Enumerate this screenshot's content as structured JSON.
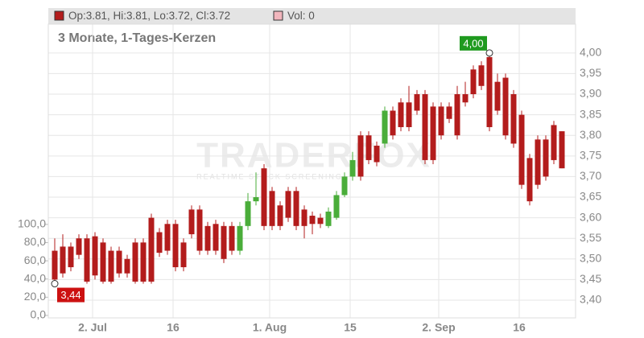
{
  "chart_data": {
    "type": "candlestick",
    "ohlc_label": "Op:3.81, Hi:3.81, Lo:3.72, Cl:3.72",
    "volume_label": "Vol: 0",
    "subtitle": "3 Monate, 1-Tages-Kerzen",
    "watermark": "TRADERFOX",
    "watermark_tagline": "REALTIME STOCK SCREENING",
    "up_color": "#4aad3a",
    "down_color": "#b31c1c",
    "categories": [
      null,
      null,
      null,
      null,
      null,
      "2. Jul",
      null,
      null,
      null,
      null,
      null,
      null,
      null,
      null,
      null,
      "16",
      null,
      null,
      null,
      null,
      null,
      null,
      null,
      null,
      null,
      null,
      null,
      "1. Aug",
      null,
      null,
      null,
      null,
      null,
      null,
      null,
      null,
      null,
      "15",
      null,
      null,
      null,
      null,
      null,
      null,
      null,
      null,
      null,
      null,
      "2. Sep",
      null,
      null,
      null,
      null,
      null,
      null,
      null,
      null,
      null,
      "16",
      null,
      null,
      null,
      null,
      null
    ],
    "open": [
      3.52,
      3.53,
      3.53,
      3.55,
      3.55,
      3.555,
      3.54,
      3.52,
      3.52,
      3.5,
      3.54,
      3.54,
      3.6,
      3.565,
      3.585,
      3.585,
      3.54,
      3.62,
      3.62,
      3.58,
      3.585,
      3.58,
      3.58,
      3.52,
      3.58,
      3.64,
      3.72,
      3.665,
      3.63,
      3.665,
      3.665,
      3.62,
      3.605,
      3.6,
      3.58,
      3.6,
      3.655,
      3.7,
      3.8,
      3.8,
      3.775,
      3.78,
      3.86,
      3.88,
      3.88,
      3.9,
      3.9,
      3.87,
      3.87,
      3.87,
      3.9,
      3.9,
      3.96,
      3.97,
      3.99,
      3.93,
      3.94,
      3.9,
      3.85,
      3.745,
      3.79,
      3.79,
      3.825,
      3.81
    ],
    "high": [
      3.55,
      3.56,
      3.54,
      3.56,
      3.56,
      3.565,
      3.55,
      3.53,
      3.53,
      3.51,
      3.55,
      3.55,
      3.61,
      3.575,
      3.595,
      3.595,
      3.55,
      3.63,
      3.63,
      3.59,
      3.595,
      3.59,
      3.59,
      3.59,
      3.66,
      3.71,
      3.73,
      3.675,
      3.64,
      3.675,
      3.675,
      3.63,
      3.615,
      3.61,
      3.625,
      3.665,
      3.71,
      3.76,
      3.81,
      3.81,
      3.785,
      3.87,
      3.87,
      3.89,
      3.92,
      3.91,
      3.91,
      3.88,
      3.88,
      3.88,
      3.92,
      3.93,
      3.97,
      3.98,
      4.0,
      3.95,
      3.95,
      3.91,
      3.86,
      3.755,
      3.8,
      3.8,
      3.835,
      3.81
    ],
    "low": [
      3.44,
      3.455,
      3.47,
      3.5,
      3.44,
      3.45,
      3.44,
      3.44,
      3.455,
      3.455,
      3.44,
      3.44,
      3.44,
      3.505,
      3.51,
      3.47,
      3.47,
      3.55,
      3.51,
      3.51,
      3.51,
      3.49,
      3.51,
      3.51,
      3.57,
      3.63,
      3.57,
      3.57,
      3.57,
      3.59,
      3.57,
      3.55,
      3.56,
      3.575,
      3.575,
      3.595,
      3.65,
      3.69,
      3.69,
      3.73,
      3.725,
      3.77,
      3.79,
      3.81,
      3.81,
      3.85,
      3.73,
      3.73,
      3.79,
      3.83,
      3.79,
      3.87,
      3.89,
      3.91,
      3.81,
      3.85,
      3.79,
      3.77,
      3.67,
      3.63,
      3.67,
      3.69,
      3.73,
      3.72
    ],
    "close": [
      3.45,
      3.465,
      3.48,
      3.51,
      3.445,
      3.46,
      3.445,
      3.445,
      3.465,
      3.465,
      3.445,
      3.445,
      3.445,
      3.515,
      3.52,
      3.48,
      3.48,
      3.56,
      3.52,
      3.52,
      3.52,
      3.5,
      3.52,
      3.58,
      3.64,
      3.65,
      3.58,
      3.58,
      3.58,
      3.6,
      3.58,
      3.58,
      3.585,
      3.585,
      3.615,
      3.655,
      3.7,
      3.74,
      3.7,
      3.74,
      3.735,
      3.86,
      3.8,
      3.82,
      3.82,
      3.86,
      3.74,
      3.74,
      3.8,
      3.84,
      3.8,
      3.88,
      3.9,
      3.92,
      3.82,
      3.86,
      3.8,
      3.78,
      3.68,
      3.64,
      3.68,
      3.7,
      3.74,
      3.72
    ],
    "ylim": [
      3.357,
      4.07
    ],
    "yticks": [
      {
        "value": 3.4,
        "label": "3,40"
      },
      {
        "value": 3.45,
        "label": "3,45"
      },
      {
        "value": 3.5,
        "label": "3,50"
      },
      {
        "value": 3.55,
        "label": "3,55"
      },
      {
        "value": 3.6,
        "label": "3,60"
      },
      {
        "value": 3.65,
        "label": "3,65"
      },
      {
        "value": 3.7,
        "label": "3,70"
      },
      {
        "value": 3.75,
        "label": "3,75"
      },
      {
        "value": 3.8,
        "label": "3,80"
      },
      {
        "value": 3.85,
        "label": "3,85"
      },
      {
        "value": 3.9,
        "label": "3,90"
      },
      {
        "value": 3.95,
        "label": "3,95"
      },
      {
        "value": 4.0,
        "label": "4,00"
      }
    ],
    "y2lim": [
      -2.7,
      320
    ],
    "y2ticks": [
      {
        "value": 0,
        "label": "0,0"
      },
      {
        "value": 20,
        "label": "20,0"
      },
      {
        "value": 40,
        "label": "40,0"
      },
      {
        "value": 60,
        "label": "60,0"
      },
      {
        "value": 80,
        "label": "80,0"
      },
      {
        "value": 100,
        "label": "100,0"
      }
    ],
    "grid": true,
    "annotations": [
      {
        "value": 4.0,
        "label": "4,00",
        "color": "#1f9a1f"
      },
      {
        "value": 3.44,
        "label": "3,44",
        "color": "#cc1111"
      }
    ]
  }
}
